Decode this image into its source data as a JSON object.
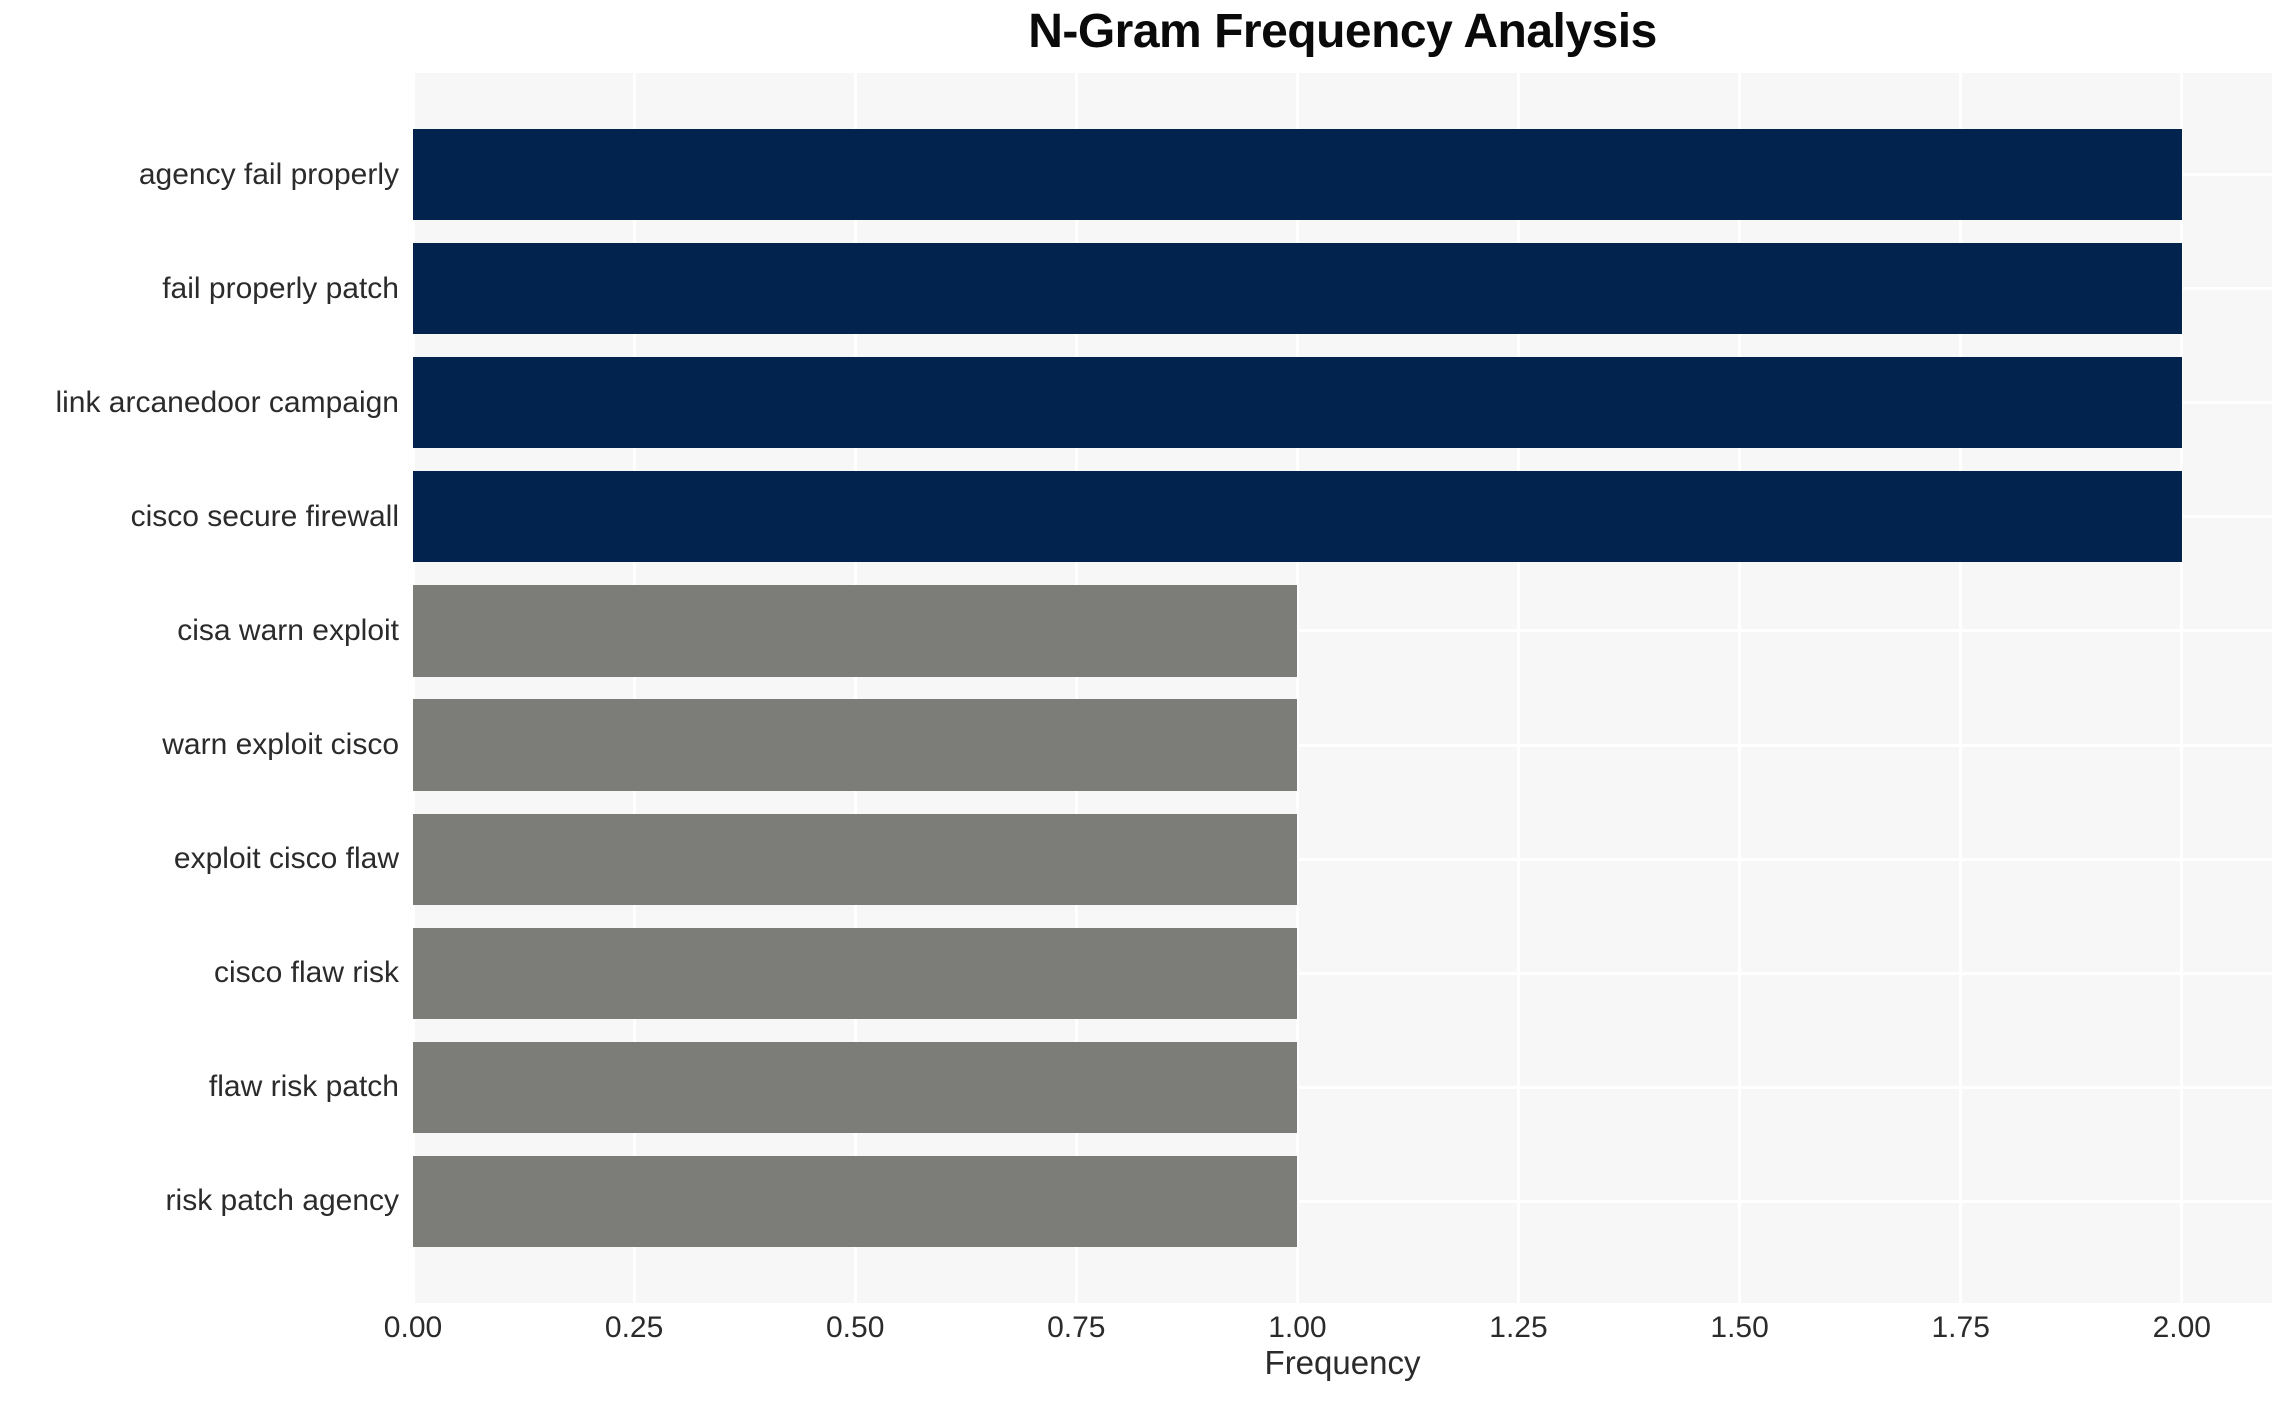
{
  "chart_data": {
    "type": "bar",
    "orientation": "horizontal",
    "title": "N-Gram Frequency Analysis",
    "xlabel": "Frequency",
    "ylabel": "",
    "categories": [
      "agency fail properly",
      "fail properly patch",
      "link arcanedoor campaign",
      "cisco secure firewall",
      "cisa warn exploit",
      "warn exploit cisco",
      "exploit cisco flaw",
      "cisco flaw risk",
      "flaw risk patch",
      "risk patch agency"
    ],
    "values": [
      2,
      2,
      2,
      2,
      1,
      1,
      1,
      1,
      1,
      1
    ],
    "bar_colors": [
      "#02234e",
      "#02234e",
      "#02234e",
      "#02234e",
      "#7c7c78",
      "#7c7c78",
      "#7c7c78",
      "#7c7c78",
      "#7c7c78",
      "#7c7c78"
    ],
    "xlim": [
      0,
      2.102
    ],
    "xticks": [
      0,
      0.25,
      0.5,
      0.75,
      1.0,
      1.25,
      1.5,
      1.75,
      2.0
    ],
    "xtick_labels": [
      "0.00",
      "0.25",
      "0.50",
      "0.75",
      "1.00",
      "1.25",
      "1.50",
      "1.75",
      "2.00"
    ],
    "grid": true,
    "legend": "none",
    "colors": {
      "high_frequency_bar": "#02234e",
      "low_frequency_bar": "#7c7c78",
      "plot_background": "#f7f7f7",
      "grid_color": "#ffffff",
      "text_color": "#2b2b2b",
      "title_color": "#0a0a0a"
    }
  }
}
